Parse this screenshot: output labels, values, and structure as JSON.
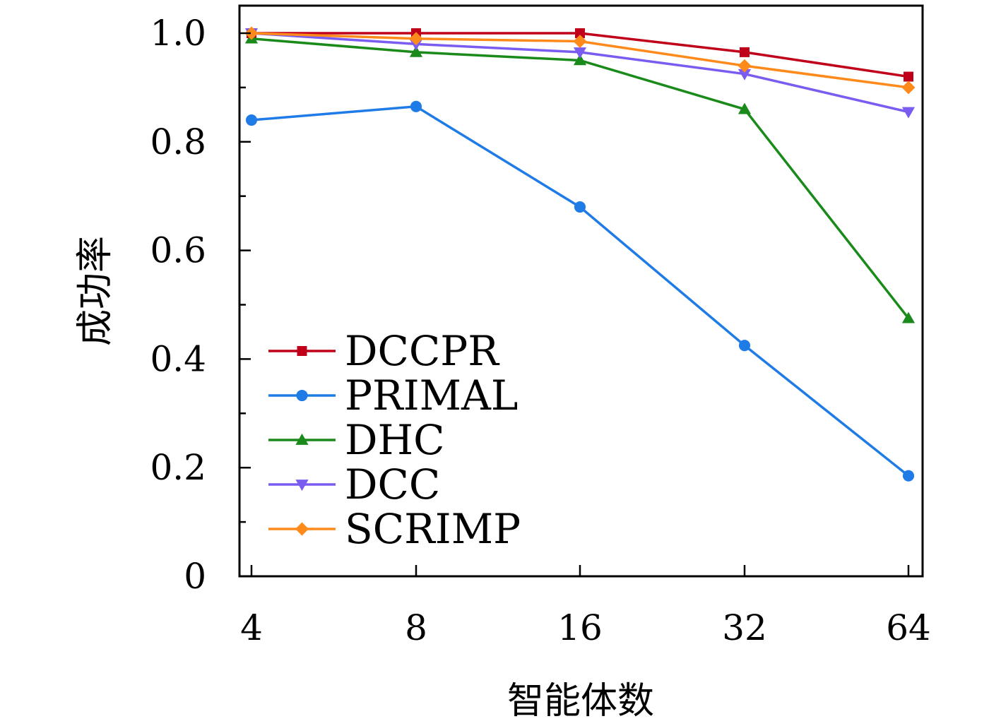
{
  "chart_data": {
    "type": "line",
    "xlabel": "智能体数",
    "ylabel": "成功率",
    "categories": [
      "4",
      "8",
      "16",
      "32",
      "64"
    ],
    "ylim": [
      0,
      1.0
    ],
    "yticks": [
      "0",
      "0.2",
      "0.4",
      "0.6",
      "0.8",
      "1.0"
    ],
    "legend_position": "lower-left",
    "series": [
      {
        "name": "DCCPR",
        "color": "#c0001a",
        "marker": "square",
        "values": [
          1.0,
          1.0,
          1.0,
          0.965,
          0.92
        ]
      },
      {
        "name": "PRIMAL",
        "color": "#1f7be6",
        "marker": "circle",
        "values": [
          0.84,
          0.865,
          0.68,
          0.425,
          0.185
        ]
      },
      {
        "name": "DHC",
        "color": "#1a8a1a",
        "marker": "triangle-up",
        "values": [
          0.99,
          0.965,
          0.95,
          0.86,
          0.475
        ]
      },
      {
        "name": "DCC",
        "color": "#7b5cf0",
        "marker": "triangle-down",
        "values": [
          1.0,
          0.98,
          0.965,
          0.925,
          0.855
        ]
      },
      {
        "name": "SCRIMP",
        "color": "#ff8a1c",
        "marker": "diamond",
        "values": [
          1.0,
          0.99,
          0.985,
          0.94,
          0.9
        ]
      }
    ]
  }
}
